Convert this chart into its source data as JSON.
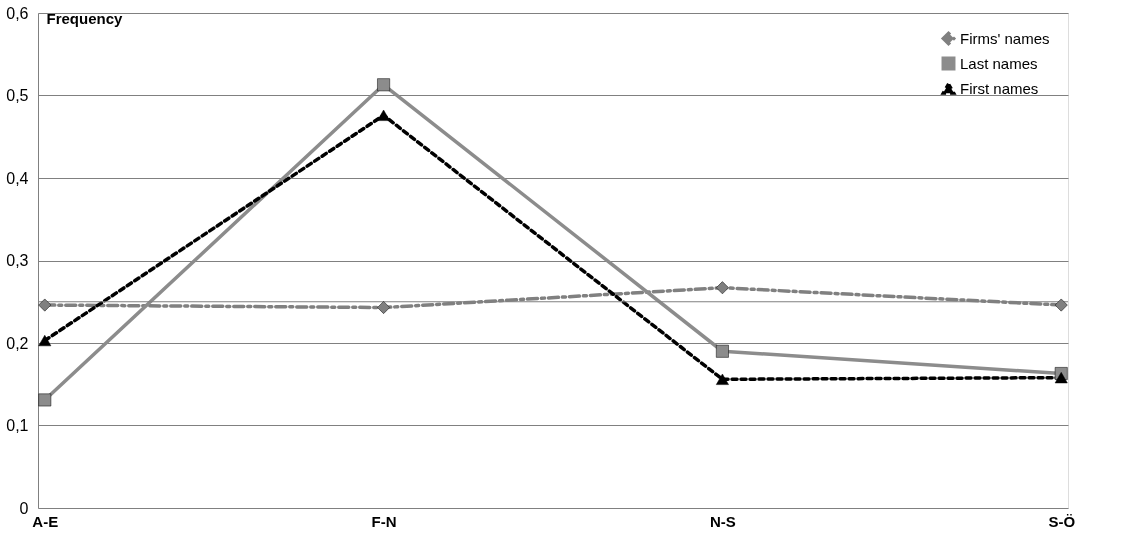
{
  "chart_data": {
    "type": "line",
    "ylabel": "Frequency",
    "categories": [
      "A-E",
      "F-N",
      "N-S",
      "S-Ö"
    ],
    "series": [
      {
        "name": "Firms' names",
        "color": "#808080",
        "marker": "diamond",
        "line_style": "dashed",
        "values": [
          0.246,
          0.243,
          0.267,
          0.246
        ]
      },
      {
        "name": "Last names",
        "color": "#8c8c8c",
        "marker": "square",
        "line_style": "solid",
        "values": [
          0.131,
          0.513,
          0.19,
          0.163
        ]
      },
      {
        "name": "First names",
        "color": "#000000",
        "marker": "triangle",
        "line_style": "dotted",
        "values": [
          0.203,
          0.476,
          0.156,
          0.158
        ]
      }
    ],
    "ylim": [
      0,
      0.6
    ],
    "yticks": [
      0,
      {
        "value": 0.1,
        "label": "0,1"
      },
      {
        "value": 0.2,
        "label": "0,2"
      },
      {
        "value": 0.3,
        "label": "0,3"
      },
      {
        "value": 0.4,
        "label": "0,4"
      },
      {
        "value": 0.5,
        "label": "0,5"
      },
      {
        "value": 0.6,
        "label": "0,6"
      }
    ],
    "ref_lines": [
      {
        "axis": "y",
        "value": 0.25,
        "label": null,
        "color": "#808080"
      }
    ],
    "grid": "y",
    "legend": "top right"
  }
}
